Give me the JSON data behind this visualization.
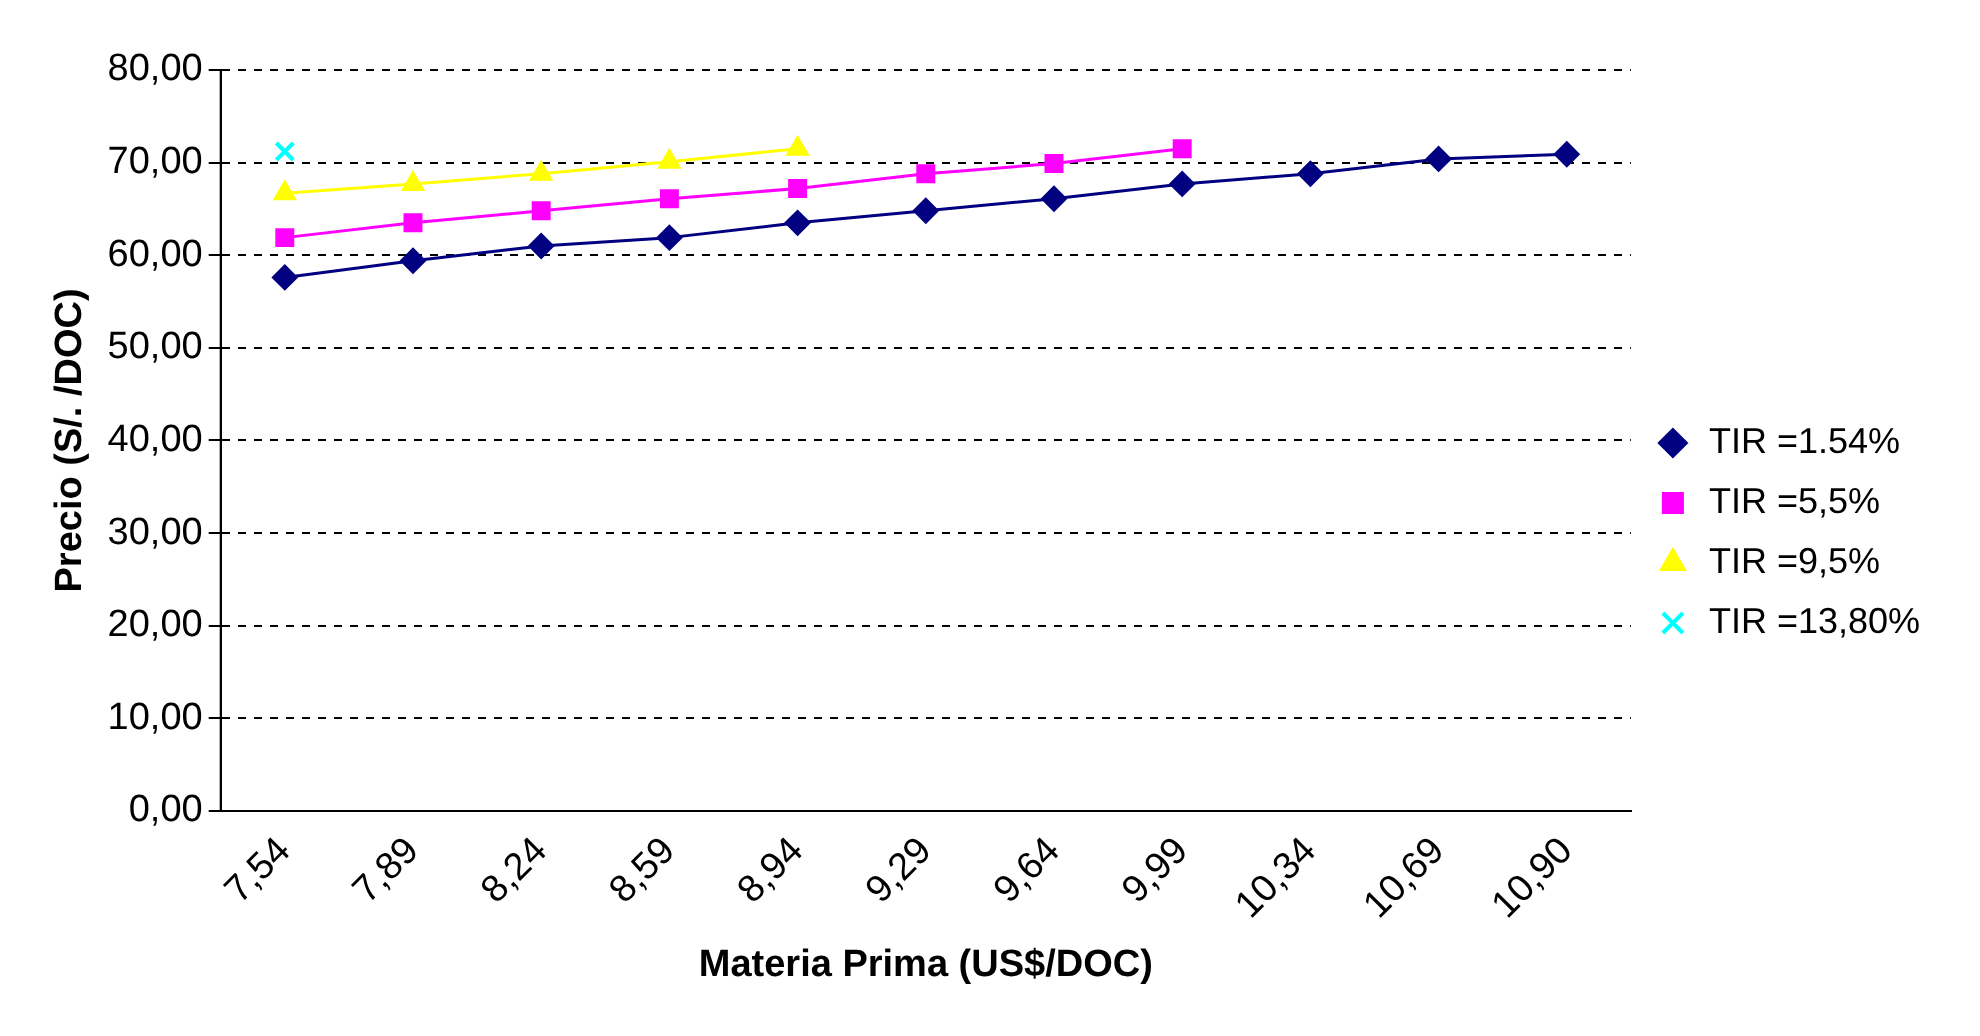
{
  "chart_data": {
    "type": "line",
    "xlabel": "Materia Prima (US$/DOC)",
    "ylabel": "Precio (S/. /DOC)",
    "categories": [
      "7,54",
      "7,89",
      "8,24",
      "8,59",
      "8,94",
      "9,29",
      "9,64",
      "9,99",
      "10,34",
      "10,69",
      "10,90"
    ],
    "series": [
      {
        "name": "TIR =1.54%",
        "color": "#000080",
        "marker": "diamond",
        "values": [
          57.6,
          59.4,
          61,
          61.9,
          63.5,
          64.8,
          66.1,
          67.7,
          68.8,
          70.4,
          70.9
        ]
      },
      {
        "name": "TIR =5,5%",
        "color": "#ff00ff",
        "marker": "square",
        "values": [
          61.9,
          63.5,
          64.8,
          66.1,
          67.2,
          68.8,
          69.9,
          71.5,
          null,
          null,
          null
        ]
      },
      {
        "name": "TIR =9,5%",
        "color": "#ffff00",
        "marker": "triangle",
        "values": [
          66.7,
          67.7,
          68.8,
          70.1,
          71.5,
          null,
          null,
          null,
          null,
          null,
          null
        ]
      },
      {
        "name": "TIR =13,80%",
        "color": "#00ffff",
        "marker": "cross",
        "values": [
          71.2,
          null,
          null,
          null,
          null,
          null,
          null,
          null,
          null,
          null,
          null
        ]
      }
    ],
    "ylim": [
      0,
      80
    ],
    "yticks": [
      {
        "value": 0,
        "label": "0,00"
      },
      {
        "value": 10,
        "label": "10,00"
      },
      {
        "value": 20,
        "label": "20,00"
      },
      {
        "value": 30,
        "label": "30,00"
      },
      {
        "value": 40,
        "label": "40,00"
      },
      {
        "value": 50,
        "label": "50,00"
      },
      {
        "value": 60,
        "label": "60,00"
      },
      {
        "value": 70,
        "label": "70,00"
      },
      {
        "value": 80,
        "label": "80,00"
      }
    ],
    "grid": "y",
    "legend": "right",
    "line_style": "solid"
  }
}
